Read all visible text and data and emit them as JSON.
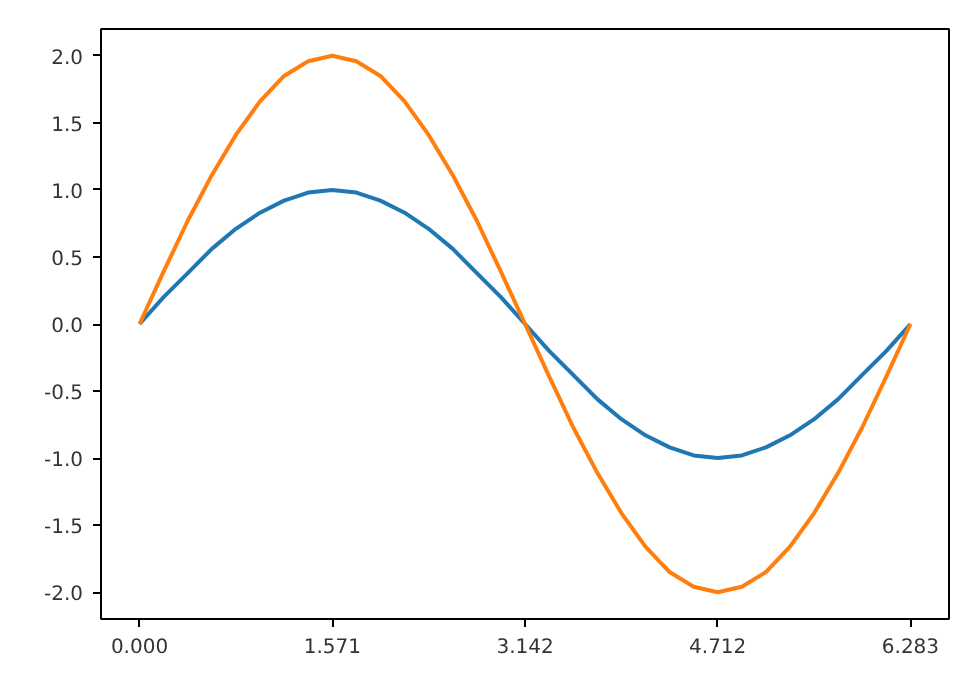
{
  "chart_data": {
    "type": "line",
    "x": [
      0,
      0.196,
      0.393,
      0.589,
      0.785,
      0.982,
      1.178,
      1.374,
      1.571,
      1.767,
      1.963,
      2.16,
      2.356,
      2.553,
      2.749,
      2.945,
      3.142,
      3.338,
      3.534,
      3.731,
      3.927,
      4.123,
      4.32,
      4.516,
      4.712,
      4.909,
      5.105,
      5.301,
      5.498,
      5.694,
      5.89,
      6.087,
      6.283
    ],
    "series": [
      {
        "color": "#1f77b4",
        "values": [
          0,
          0.2,
          0.38,
          0.56,
          0.71,
          0.83,
          0.92,
          0.98,
          1,
          0.98,
          0.92,
          0.83,
          0.71,
          0.56,
          0.38,
          0.2,
          0,
          -0.2,
          -0.38,
          -0.56,
          -0.71,
          -0.83,
          -0.92,
          -0.98,
          -1,
          -0.98,
          -0.92,
          -0.83,
          -0.71,
          -0.56,
          -0.38,
          -0.2,
          0
        ]
      },
      {
        "color": "#ff7f0e",
        "values": [
          0,
          0.39,
          0.77,
          1.11,
          1.41,
          1.66,
          1.85,
          1.96,
          2,
          1.96,
          1.85,
          1.66,
          1.41,
          1.11,
          0.77,
          0.39,
          0,
          -0.39,
          -0.77,
          -1.11,
          -1.41,
          -1.66,
          -1.85,
          -1.96,
          -2,
          -1.96,
          -1.85,
          -1.66,
          -1.41,
          -1.11,
          -0.77,
          -0.39,
          0
        ]
      }
    ],
    "xlim": [
      -0.314,
      6.597
    ],
    "ylim": [
      -2.2,
      2.2
    ],
    "xticks": [
      {
        "value": 0,
        "label": "0.000"
      },
      {
        "value": 1.571,
        "label": "1.571"
      },
      {
        "value": 3.142,
        "label": "3.142"
      },
      {
        "value": 4.712,
        "label": "4.712"
      },
      {
        "value": 6.283,
        "label": "6.283"
      }
    ],
    "yticks": [
      {
        "value": -2,
        "label": "-2.0"
      },
      {
        "value": -1.5,
        "label": "-1.5"
      },
      {
        "value": -1,
        "label": "-1.0"
      },
      {
        "value": -0.5,
        "label": "-0.5"
      },
      {
        "value": 0,
        "label": "0.0"
      },
      {
        "value": 0.5,
        "label": "0.5"
      },
      {
        "value": 1,
        "label": "1.0"
      },
      {
        "value": 1.5,
        "label": "1.5"
      },
      {
        "value": 2,
        "label": "2.0"
      }
    ],
    "grid": false,
    "line_style": "solid",
    "marker": "none"
  }
}
